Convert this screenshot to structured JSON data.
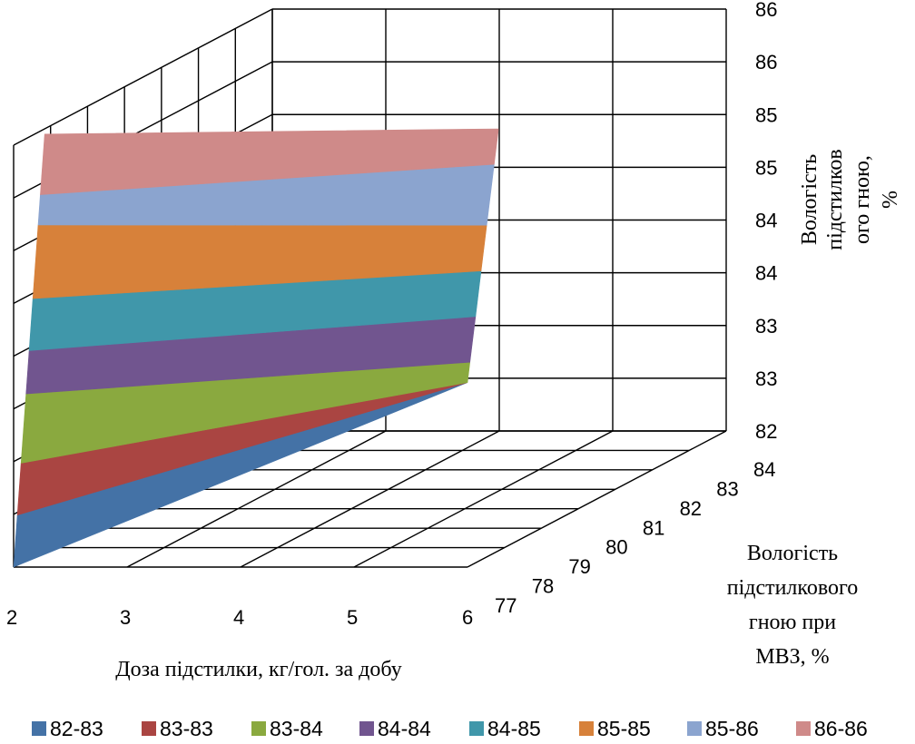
{
  "chart_data": {
    "type": "surface-3d",
    "x_axis": {
      "label": "Доза підстилки, кг/гол. за добу",
      "ticks": [
        "2",
        "3",
        "4",
        "5",
        "6"
      ]
    },
    "depth_axis": {
      "label_lines": [
        "Вологість",
        "підстилкового",
        "гною при",
        "МВЗ, %"
      ],
      "ticks": [
        "77",
        "78",
        "79",
        "80",
        "81",
        "82",
        "83",
        "84"
      ]
    },
    "z_axis": {
      "label_lines": [
        "Вологість",
        "підстилков",
        "ого гною,",
        "%"
      ],
      "ticks": [
        "82",
        "83",
        "83",
        "84",
        "84",
        "85",
        "85",
        "86",
        "86"
      ],
      "range": [
        82,
        86
      ]
    },
    "bands": [
      {
        "name": "82-83",
        "color": "#4472A6"
      },
      {
        "name": "83-83",
        "color": "#AA4542"
      },
      {
        "name": "83-84",
        "color": "#8AA93F"
      },
      {
        "name": "84-84",
        "color": "#71558F"
      },
      {
        "name": "84-85",
        "color": "#4097AA"
      },
      {
        "name": "85-85",
        "color": "#D7813A"
      },
      {
        "name": "85-86",
        "color": "#8BA4CF"
      },
      {
        "name": "86-86",
        "color": "#CF8A89"
      }
    ],
    "grid": true,
    "legend_position": "bottom",
    "surface_corner_values": {
      "x2_depth77": 82.0,
      "x2_depth84": 85.95,
      "x6_depth77": 83.75,
      "x6_depth84": 86.0
    }
  }
}
